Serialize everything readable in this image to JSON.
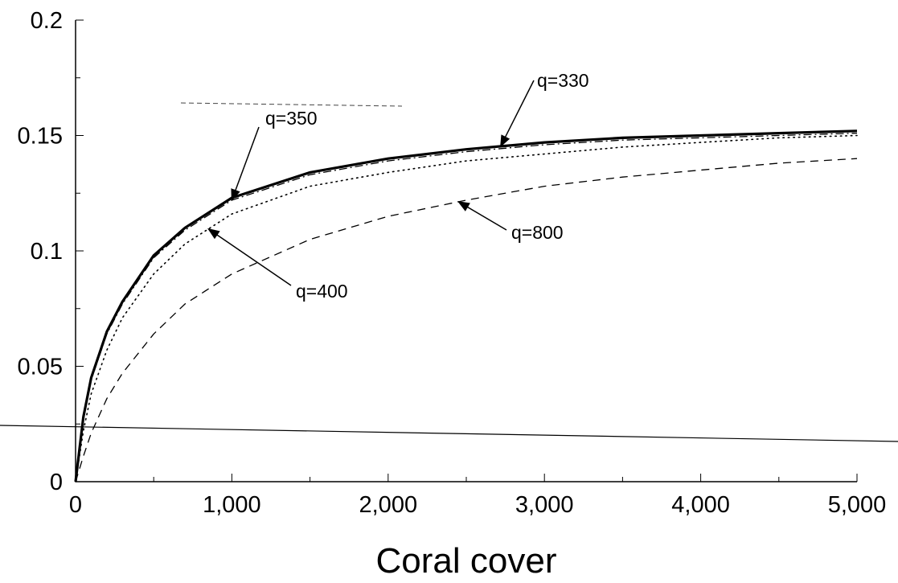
{
  "chart_data": {
    "type": "line",
    "title": "",
    "xlabel": "Coral cover",
    "ylabel": "",
    "xlim": [
      0,
      5000
    ],
    "ylim": [
      0,
      0.2
    ],
    "grid": false,
    "x_ticks": [
      0,
      1000,
      2000,
      3000,
      4000,
      5000
    ],
    "x_tick_labels": [
      "0",
      "1,000",
      "2,000",
      "3,000",
      "4,000",
      "5,000"
    ],
    "y_ticks": [
      0,
      0.05,
      0.1,
      0.15,
      0.2
    ],
    "y_tick_labels": [
      "0",
      "0.05",
      "0.1",
      "0.15",
      "0.2"
    ],
    "x": [
      0,
      50,
      100,
      200,
      300,
      500,
      700,
      1000,
      1500,
      2000,
      2500,
      3000,
      3500,
      4000,
      4500,
      5000
    ],
    "series": [
      {
        "label": "q=330",
        "style": "solid-thick",
        "values": [
          0,
          0.028,
          0.045,
          0.065,
          0.078,
          0.098,
          0.11,
          0.123,
          0.134,
          0.14,
          0.144,
          0.147,
          0.149,
          0.15,
          0.151,
          0.152
        ]
      },
      {
        "label": "q=350",
        "style": "dash-dot",
        "values": [
          0,
          0.027,
          0.044,
          0.064,
          0.077,
          0.097,
          0.109,
          0.122,
          0.133,
          0.139,
          0.143,
          0.146,
          0.148,
          0.149,
          0.15,
          0.151
        ]
      },
      {
        "label": "q=400",
        "style": "dotted",
        "values": [
          0,
          0.022,
          0.038,
          0.057,
          0.071,
          0.09,
          0.103,
          0.116,
          0.128,
          0.134,
          0.139,
          0.142,
          0.145,
          0.147,
          0.149,
          0.15
        ]
      },
      {
        "label": "q=800",
        "style": "dashed",
        "values": [
          0,
          0.011,
          0.021,
          0.036,
          0.047,
          0.064,
          0.077,
          0.09,
          0.105,
          0.115,
          0.122,
          0.128,
          0.132,
          0.135,
          0.138,
          0.14
        ]
      }
    ],
    "annotations": [
      {
        "text": "q=330",
        "series": "q=330",
        "point_x": 2720
      },
      {
        "text": "q=350",
        "series": "q=350",
        "point_x": 1000
      },
      {
        "text": "q=400",
        "series": "q=400",
        "point_x": 850
      },
      {
        "text": "q=800",
        "series": "q=800",
        "point_x": 2450
      }
    ]
  }
}
